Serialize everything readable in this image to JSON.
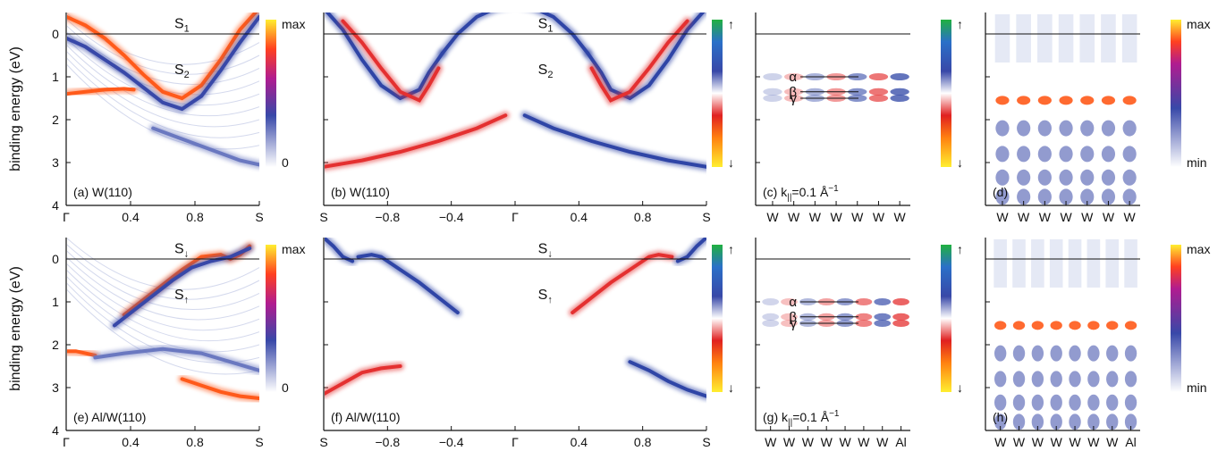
{
  "figure": {
    "ylabel": "binding energy (eV)",
    "yticks": [
      "0",
      "1",
      "2",
      "3",
      "4"
    ],
    "colorbar_labels": {
      "max": "max",
      "zero": "0",
      "min": "min",
      "up": "↑",
      "down": "↓"
    },
    "zero_line": 0
  },
  "chart_data": [
    {
      "id": "a",
      "type": "heatmap",
      "caption": "(a) W(110)",
      "ylim": [
        4,
        -0.5
      ],
      "xlabels": [
        "Γ",
        "0.4",
        "0.8",
        "S"
      ],
      "colorscale": [
        "0",
        "max"
      ],
      "annotations": [
        {
          "text": "S",
          "sub": "1"
        },
        {
          "text": "S",
          "sub": "2"
        }
      ],
      "bands": [
        {
          "x": [
            0.0,
            0.1,
            0.2,
            0.3,
            0.4,
            0.5,
            0.6,
            0.7,
            0.8,
            0.9,
            1.0
          ],
          "y": [
            -0.4,
            -0.2,
            0.1,
            0.5,
            0.95,
            1.35,
            1.5,
            1.2,
            0.6,
            -0.1,
            -0.6
          ],
          "intensity": "high"
        },
        {
          "x": [
            0.0,
            0.1,
            0.2,
            0.3,
            0.4,
            0.5,
            0.6,
            0.7,
            0.8,
            0.9,
            1.0
          ],
          "y": [
            0.1,
            0.3,
            0.6,
            0.9,
            1.25,
            1.6,
            1.75,
            1.45,
            0.85,
            0.2,
            -0.4
          ],
          "intensity": "mid"
        },
        {
          "x": [
            0.0,
            0.1,
            0.2,
            0.3,
            0.35
          ],
          "y": [
            1.4,
            1.35,
            1.3,
            1.28,
            1.3
          ],
          "intensity": "high"
        },
        {
          "x": [
            0.45,
            0.6,
            0.75,
            0.9,
            1.0
          ],
          "y": [
            2.2,
            2.45,
            2.7,
            2.95,
            3.05
          ],
          "intensity": "low"
        }
      ]
    },
    {
      "id": "b",
      "type": "heatmap",
      "caption": "(b) W(110)",
      "ylim": [
        4,
        -0.5
      ],
      "xlabels": [
        "S",
        "−0.8",
        "−0.4",
        "Γ",
        "0.4",
        "0.8",
        "S"
      ],
      "colorscale": [
        "↓",
        "↑"
      ],
      "annotations": [
        {
          "text": "S",
          "sub": "1"
        },
        {
          "text": "S",
          "sub": "2"
        }
      ],
      "bands": [
        {
          "x": [
            -1.0,
            -0.9,
            -0.8,
            -0.7,
            -0.6,
            -0.5,
            -0.45,
            -0.38
          ],
          "y": [
            -0.6,
            -0.1,
            0.6,
            1.2,
            1.5,
            1.3,
            0.9,
            0.45
          ],
          "intensity": "up"
        },
        {
          "x": [
            0.38,
            0.45,
            0.5,
            0.6,
            0.7,
            0.8,
            0.9,
            1.0
          ],
          "y": [
            0.45,
            0.9,
            1.3,
            1.5,
            1.2,
            0.6,
            -0.1,
            -0.6
          ],
          "intensity": "up"
        },
        {
          "x": [
            -0.9,
            -0.8,
            -0.7,
            -0.6,
            -0.5,
            -0.45,
            -0.4
          ],
          "y": [
            -0.3,
            0.2,
            0.8,
            1.35,
            1.55,
            1.2,
            0.8
          ],
          "intensity": "down"
        },
        {
          "x": [
            0.4,
            0.45,
            0.5,
            0.6,
            0.7,
            0.8,
            0.9
          ],
          "y": [
            0.8,
            1.2,
            1.55,
            1.35,
            0.8,
            0.2,
            -0.3
          ],
          "intensity": "down"
        },
        {
          "x": [
            -0.38,
            -0.3,
            -0.2,
            -0.1,
            0.0,
            0.1,
            0.2,
            0.3,
            0.38
          ],
          "y": [
            0.45,
            0.0,
            -0.4,
            -0.6,
            -0.7,
            -0.6,
            -0.4,
            0.0,
            0.45
          ],
          "intensity": "up"
        },
        {
          "x": [
            -1.0,
            -0.8,
            -0.6,
            -0.4,
            -0.2,
            -0.05
          ],
          "y": [
            3.1,
            2.95,
            2.75,
            2.5,
            2.2,
            1.9
          ],
          "intensity": "down"
        },
        {
          "x": [
            0.05,
            0.2,
            0.4,
            0.6,
            0.8,
            1.0
          ],
          "y": [
            1.9,
            2.2,
            2.5,
            2.75,
            2.95,
            3.1
          ],
          "intensity": "up"
        }
      ]
    },
    {
      "id": "c",
      "type": "heatmap",
      "caption": "(c) k",
      "caption_sub": "||",
      "caption_tail": "=0.1 Å",
      "caption_sup": "−1",
      "xlabels": [
        "W",
        "W",
        "W",
        "W",
        "W",
        "W",
        "W"
      ],
      "colorscale": [
        "↓",
        "↑"
      ],
      "states": [
        {
          "label": "α",
          "energy": 1.0
        },
        {
          "label": "β",
          "energy": 1.35
        },
        {
          "label": "γ",
          "energy": 1.5
        }
      ]
    },
    {
      "id": "d",
      "type": "heatmap",
      "caption": "(d)",
      "xlabels": [
        "W",
        "W",
        "W",
        "W",
        "W",
        "W",
        "W"
      ],
      "colorscale": [
        "min",
        "max"
      ]
    },
    {
      "id": "e",
      "type": "heatmap",
      "caption": "(e) Al/W(110)",
      "ylim": [
        4,
        -0.5
      ],
      "xlabels": [
        "Γ",
        "0.4",
        "0.8",
        "S"
      ],
      "colorscale": [
        "0",
        "max"
      ],
      "annotations": [
        {
          "text": "S",
          "sub": "↓"
        },
        {
          "text": "S",
          "sub": "↑"
        }
      ],
      "bands": [
        {
          "x": [
            0.3,
            0.4,
            0.5,
            0.6,
            0.7,
            0.8,
            0.85,
            0.9,
            0.95
          ],
          "y": [
            1.3,
            0.95,
            0.6,
            0.25,
            -0.05,
            -0.1,
            0.0,
            -0.1,
            -0.3
          ],
          "intensity": "high"
        },
        {
          "x": [
            0.25,
            0.35,
            0.45,
            0.55,
            0.65,
            0.75,
            0.85,
            0.95
          ],
          "y": [
            1.55,
            1.2,
            0.85,
            0.5,
            0.2,
            0.05,
            -0.05,
            -0.25
          ],
          "intensity": "mid"
        },
        {
          "x": [
            0.0,
            0.05,
            0.1,
            0.15
          ],
          "y": [
            2.15,
            2.15,
            2.2,
            2.25
          ],
          "intensity": "high"
        },
        {
          "x": [
            0.15,
            0.3,
            0.5,
            0.7,
            0.85,
            1.0
          ],
          "y": [
            2.3,
            2.2,
            2.1,
            2.2,
            2.4,
            2.6
          ],
          "intensity": "low"
        },
        {
          "x": [
            0.6,
            0.7,
            0.8,
            0.9,
            1.0
          ],
          "y": [
            2.8,
            2.95,
            3.1,
            3.2,
            3.25
          ],
          "intensity": "high"
        }
      ]
    },
    {
      "id": "f",
      "type": "heatmap",
      "caption": "(f) Al/W(110)",
      "ylim": [
        4,
        -0.5
      ],
      "xlabels": [
        "S",
        "−0.8",
        "−0.4",
        "Γ",
        "0.4",
        "0.8",
        "S"
      ],
      "colorscale": [
        "↓",
        "↑"
      ],
      "annotations": [
        {
          "text": "S",
          "sub": "↓"
        },
        {
          "text": "S",
          "sub": "↑"
        }
      ],
      "bands": [
        {
          "x": [
            -1.0,
            -0.95,
            -0.9,
            -0.85
          ],
          "y": [
            -0.5,
            -0.3,
            -0.05,
            0.05
          ],
          "intensity": "up"
        },
        {
          "x": [
            -0.82,
            -0.75,
            -0.7,
            -0.6,
            -0.5,
            -0.4,
            -0.3
          ],
          "y": [
            -0.05,
            -0.1,
            -0.05,
            0.25,
            0.55,
            0.9,
            1.25
          ],
          "intensity": "up"
        },
        {
          "x": [
            0.3,
            0.4,
            0.5,
            0.6,
            0.7,
            0.75,
            0.82
          ],
          "y": [
            1.25,
            0.9,
            0.55,
            0.25,
            -0.05,
            -0.1,
            -0.05
          ],
          "intensity": "down"
        },
        {
          "x": [
            0.85,
            0.9,
            0.95,
            1.0
          ],
          "y": [
            0.05,
            -0.05,
            -0.3,
            -0.5
          ],
          "intensity": "up"
        },
        {
          "x": [
            -1.0,
            -0.9,
            -0.8,
            -0.7,
            -0.6
          ],
          "y": [
            3.15,
            2.9,
            2.65,
            2.55,
            2.5
          ],
          "intensity": "down"
        },
        {
          "x": [
            0.6,
            0.7,
            0.8,
            0.9,
            1.0
          ],
          "y": [
            2.4,
            2.6,
            2.85,
            3.05,
            3.2
          ],
          "intensity": "up"
        }
      ]
    },
    {
      "id": "g",
      "type": "heatmap",
      "caption": "(g) k",
      "caption_sub": "||",
      "caption_tail": "=0.1 Å",
      "caption_sup": "−1",
      "xlabels": [
        "W",
        "W",
        "W",
        "W",
        "W",
        "W",
        "W",
        "Al"
      ],
      "colorscale": [
        "↓",
        "↑"
      ],
      "states": [
        {
          "label": "α",
          "energy": 1.0
        },
        {
          "label": "β",
          "energy": 1.35
        },
        {
          "label": "γ",
          "energy": 1.5
        }
      ]
    },
    {
      "id": "h",
      "type": "heatmap",
      "caption": "(h)",
      "xlabels": [
        "W",
        "W",
        "W",
        "W",
        "W",
        "W",
        "W",
        "Al"
      ],
      "colorscale": [
        "min",
        "max"
      ]
    }
  ]
}
